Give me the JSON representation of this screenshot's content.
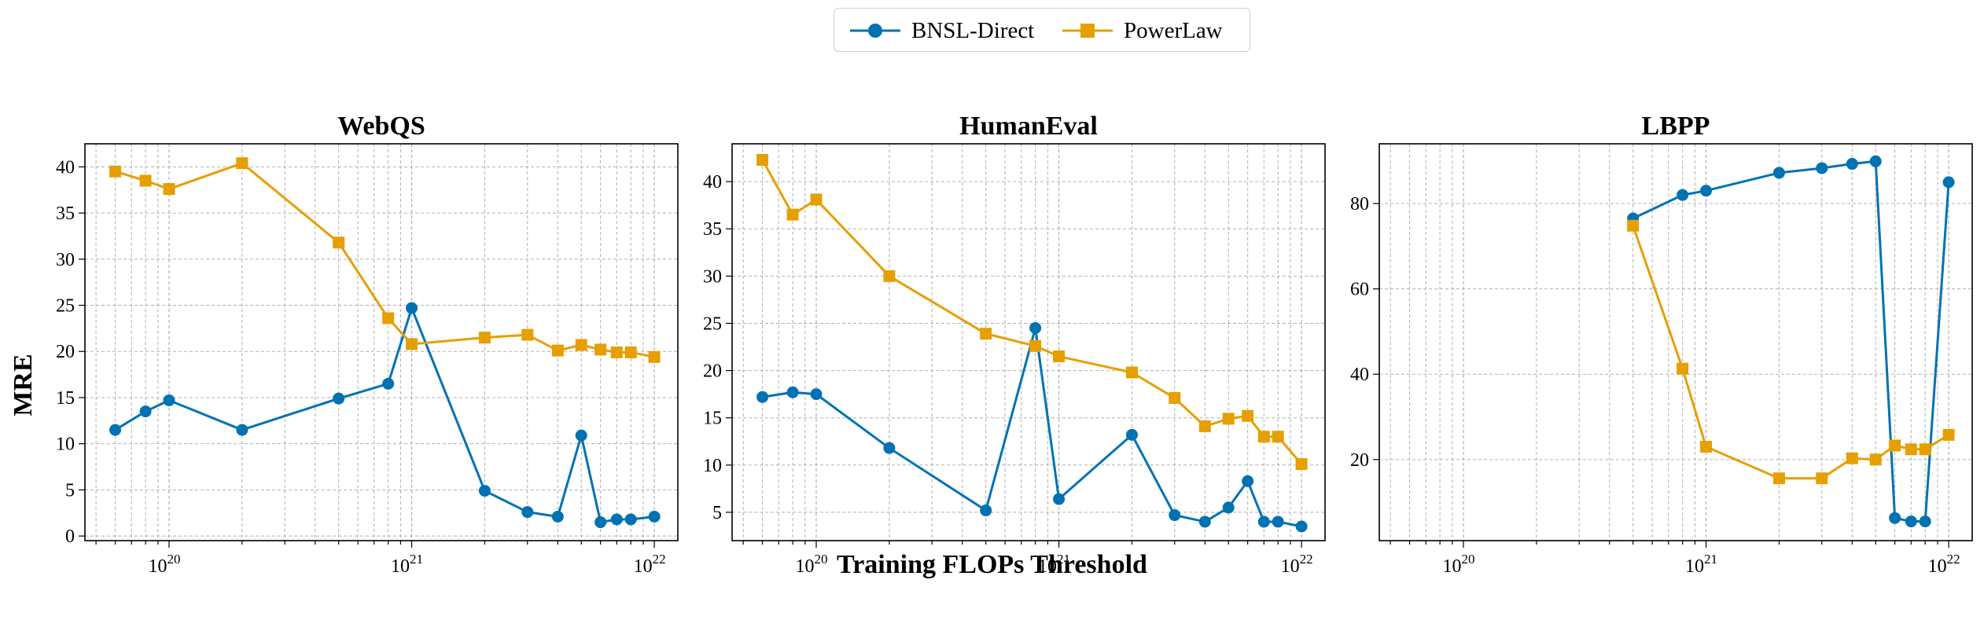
{
  "figure": {
    "xlabel": "Training FLOPs Threshold",
    "ylabel": "MRE"
  },
  "legend": [
    {
      "name": "BNSL-Direct",
      "color": "#0072b2",
      "marker": "circle"
    },
    {
      "name": "PowerLaw",
      "color": "#e69f00",
      "marker": "square"
    }
  ],
  "chart_data": [
    {
      "type": "line",
      "title": "WebQS",
      "xscale": "log",
      "xlim": [
        4.5e+19,
        1.25e+22
      ],
      "ylim": [
        -0.5,
        42.5
      ],
      "yticks": [
        0,
        5,
        10,
        15,
        20,
        25,
        30,
        35,
        40
      ],
      "xticks": [
        {
          "value": 1e+20,
          "base": "10",
          "exp": "20"
        },
        {
          "value": 1e+21,
          "base": "10",
          "exp": "21"
        },
        {
          "value": 1e+22,
          "base": "10",
          "exp": "22"
        }
      ],
      "grid": true,
      "series": [
        {
          "name": "BNSL-Direct",
          "x": [
            6e+19,
            8e+19,
            1e+20,
            2e+20,
            5e+20,
            8e+20,
            1e+21,
            2e+21,
            3e+21,
            4e+21,
            5e+21,
            6e+21,
            7e+21,
            8e+21,
            1e+22
          ],
          "y": [
            11.5,
            13.5,
            14.7,
            11.5,
            14.9,
            16.5,
            24.7,
            4.9,
            2.6,
            2.1,
            10.9,
            1.5,
            1.8,
            1.8,
            2.1
          ]
        },
        {
          "name": "PowerLaw",
          "x": [
            6e+19,
            8e+19,
            1e+20,
            2e+20,
            5e+20,
            8e+20,
            1e+21,
            2e+21,
            3e+21,
            4e+21,
            5e+21,
            6e+21,
            7e+21,
            8e+21,
            1e+22
          ],
          "y": [
            39.5,
            38.5,
            37.6,
            40.4,
            31.8,
            23.6,
            20.8,
            21.5,
            21.8,
            20.1,
            20.7,
            20.2,
            19.9,
            19.9,
            19.4
          ]
        }
      ]
    },
    {
      "type": "line",
      "title": "HumanEval",
      "xscale": "log",
      "xlim": [
        4.5e+19,
        1.25e+22
      ],
      "ylim": [
        2.0,
        44.0
      ],
      "yticks": [
        5,
        10,
        15,
        20,
        25,
        30,
        35,
        40
      ],
      "xticks": [
        {
          "value": 1e+20,
          "base": "10",
          "exp": "20"
        },
        {
          "value": 1e+21,
          "base": "10",
          "exp": "21"
        },
        {
          "value": 1e+22,
          "base": "10",
          "exp": "22"
        }
      ],
      "grid": true,
      "series": [
        {
          "name": "BNSL-Direct",
          "x": [
            6e+19,
            8e+19,
            1e+20,
            2e+20,
            5e+20,
            8e+20,
            1e+21,
            2e+21,
            3e+21,
            4e+21,
            5e+21,
            6e+21,
            7e+21,
            8e+21,
            1e+22
          ],
          "y": [
            17.2,
            17.7,
            17.5,
            11.8,
            5.2,
            24.5,
            6.4,
            13.2,
            4.7,
            4.0,
            5.5,
            8.3,
            4.0,
            4.0,
            3.5
          ]
        },
        {
          "name": "PowerLaw",
          "x": [
            6e+19,
            8e+19,
            1e+20,
            2e+20,
            5e+20,
            8e+20,
            1e+21,
            2e+21,
            3e+21,
            4e+21,
            5e+21,
            6e+21,
            7e+21,
            8e+21,
            1e+22
          ],
          "y": [
            42.3,
            36.5,
            38.1,
            30.0,
            23.9,
            22.6,
            21.5,
            19.8,
            17.1,
            14.1,
            14.9,
            15.2,
            13.0,
            13.0,
            10.1
          ]
        }
      ]
    },
    {
      "type": "line",
      "title": "LBPP",
      "xscale": "log",
      "xlim": [
        4.5e+19,
        1.25e+22
      ],
      "ylim": [
        1.0,
        94.0
      ],
      "yticks": [
        20,
        40,
        60,
        80
      ],
      "xticks": [
        {
          "value": 1e+20,
          "base": "10",
          "exp": "20"
        },
        {
          "value": 1e+21,
          "base": "10",
          "exp": "21"
        },
        {
          "value": 1e+22,
          "base": "10",
          "exp": "22"
        }
      ],
      "grid": true,
      "series": [
        {
          "name": "BNSL-Direct",
          "x": [
            5e+20,
            8e+20,
            1e+21,
            2e+21,
            3e+21,
            4e+21,
            5e+21,
            6e+21,
            7e+21,
            8e+21,
            1e+22
          ],
          "y": [
            76.5,
            82.0,
            83.0,
            87.2,
            88.3,
            89.3,
            89.9,
            6.3,
            5.5,
            5.5,
            85.0
          ]
        },
        {
          "name": "PowerLaw",
          "x": [
            5e+20,
            8e+20,
            1e+21,
            2e+21,
            3e+21,
            4e+21,
            5e+21,
            6e+21,
            7e+21,
            8e+21,
            1e+22
          ],
          "y": [
            74.8,
            41.3,
            23.0,
            15.6,
            15.6,
            20.3,
            20.0,
            23.3,
            22.4,
            22.4,
            25.8
          ]
        }
      ]
    }
  ]
}
